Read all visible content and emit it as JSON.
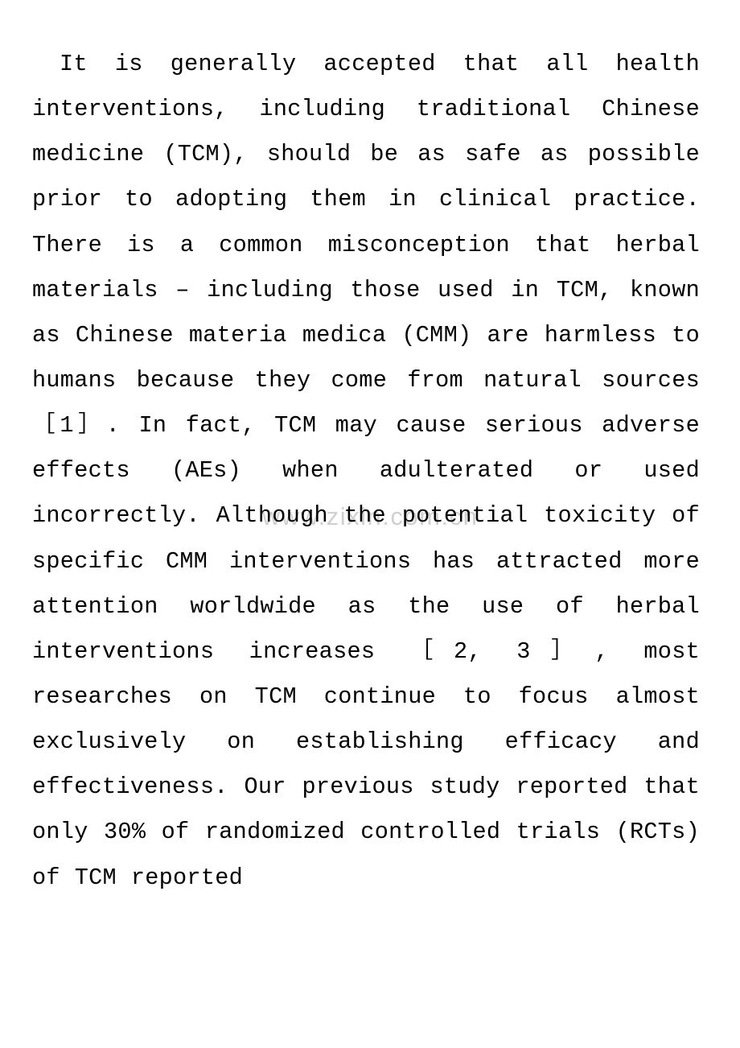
{
  "document": {
    "paragraph_text": " It is generally accepted that all health interventions, including traditional Chinese medicine (TCM), should be as safe as possible prior to adopting them in clinical practice. There is a common misconception that herbal materials – including those used in TCM, known as Chinese materia medica (CMM) are harmless to humans because they come from natural sources ［1］. In fact, TCM may cause serious adverse effects (AEs) when adulterated or used incorrectly. Although the potential toxicity of specific CMM interventions has attracted more attention worldwide as the use of herbal interventions increases ［2, 3］, most researches on TCM continue to focus almost exclusively on establishing efficacy and effectiveness. Our previous study reported that only 30% of randomized controlled trials (RCTs) of TCM reported",
    "watermark_text": "www.zixin.com.cn",
    "background_color": "#ffffff",
    "text_color": "#000000",
    "watermark_color": "#d0d0d0",
    "font_family": "Courier New, Courier, monospace",
    "font_size_pt": 21,
    "line_height": 1.97
  }
}
